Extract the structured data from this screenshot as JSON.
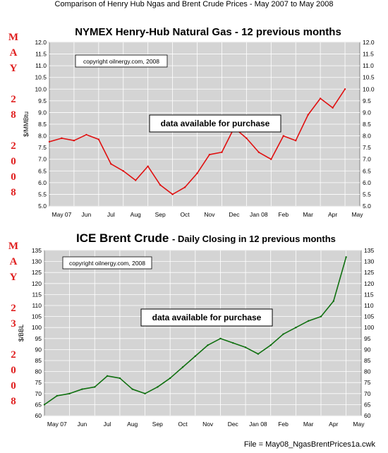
{
  "page_title": "Comparison of Henry Hub Ngas and Brent Crude Prices - May 2007 to May 2008",
  "footer": "File = May08_NgasBrentPrices1a.cwk",
  "side_labels": {
    "top": [
      "M",
      "A",
      "Y",
      "",
      "2",
      "8",
      "",
      "2",
      "0",
      "0",
      "8"
    ],
    "bottom": [
      "M",
      "A",
      "Y",
      "",
      "2",
      "3",
      "",
      "2",
      "0",
      "0",
      "8"
    ]
  },
  "chart_data": [
    {
      "type": "line",
      "title": "NYMEX Henry-Hub Natural Gas - 12 previous months",
      "ylabel": "$/MMBtu",
      "ylim": [
        5.0,
        12.0
      ],
      "yticks": [
        "5.0",
        "5.5",
        "6.0",
        "6.5",
        "7.0",
        "7.5",
        "8.0",
        "8.5",
        "9.0",
        "9.5",
        "10.0",
        "10.5",
        "11.0",
        "11.5",
        "12.0"
      ],
      "x_tick_labels": [
        "May 07",
        "Jun",
        "Jul",
        "Aug",
        "Sep",
        "Oct",
        "Nov",
        "Dec",
        "Jan 08",
        "Feb",
        "Mar",
        "Apr",
        "May"
      ],
      "copyright": "copyright oilnergy.com, 2008",
      "annotation": "data available for purchase",
      "series_color": "#e01010",
      "grid": true,
      "x": [
        0.0,
        0.5,
        1.0,
        1.5,
        2.0,
        2.5,
        3.0,
        3.5,
        4.0,
        4.5,
        5.0,
        5.5,
        6.0,
        6.5,
        7.0,
        7.5,
        8.0,
        8.5,
        9.0,
        9.5,
        10.0,
        10.5,
        11.0,
        11.5,
        12.0
      ],
      "y": [
        7.75,
        7.9,
        7.8,
        8.05,
        7.85,
        6.8,
        6.5,
        6.1,
        6.7,
        5.9,
        5.5,
        5.8,
        6.4,
        7.2,
        7.3,
        8.35,
        7.9,
        7.3,
        7.0,
        8.0,
        7.8,
        8.9,
        9.6,
        9.2,
        10.0
      ]
    },
    {
      "type": "line",
      "title": "ICE Brent Crude",
      "subtitle": "- Daily Closing in 12 previous months",
      "ylabel": "$/BBL",
      "ylim": [
        60,
        135
      ],
      "yticks": [
        "60",
        "65",
        "70",
        "75",
        "80",
        "85",
        "90",
        "95",
        "100",
        "105",
        "110",
        "115",
        "120",
        "125",
        "130",
        "135"
      ],
      "x_tick_labels": [
        "May 07",
        "Jun",
        "Jul",
        "Aug",
        "Sep",
        "Oct",
        "Nov",
        "Dec",
        "Jan 08",
        "Feb",
        "Mar",
        "Apr",
        "May"
      ],
      "copyright": "copyright oilnergy.com, 2008",
      "annotation": "data available for purchase",
      "series_color": "#107010",
      "grid": true,
      "x": [
        0.0,
        0.5,
        1.0,
        1.5,
        2.0,
        2.5,
        3.0,
        3.5,
        4.0,
        4.5,
        5.0,
        5.5,
        6.0,
        6.5,
        7.0,
        7.5,
        8.0,
        8.5,
        9.0,
        9.5,
        10.0,
        10.5,
        11.0,
        11.5,
        12.0
      ],
      "y": [
        65,
        69,
        70,
        72,
        73,
        78,
        77,
        72,
        70,
        73,
        77,
        82,
        87,
        92,
        95,
        93,
        91,
        88,
        92,
        97,
        100,
        103,
        105,
        112,
        132
      ]
    }
  ]
}
